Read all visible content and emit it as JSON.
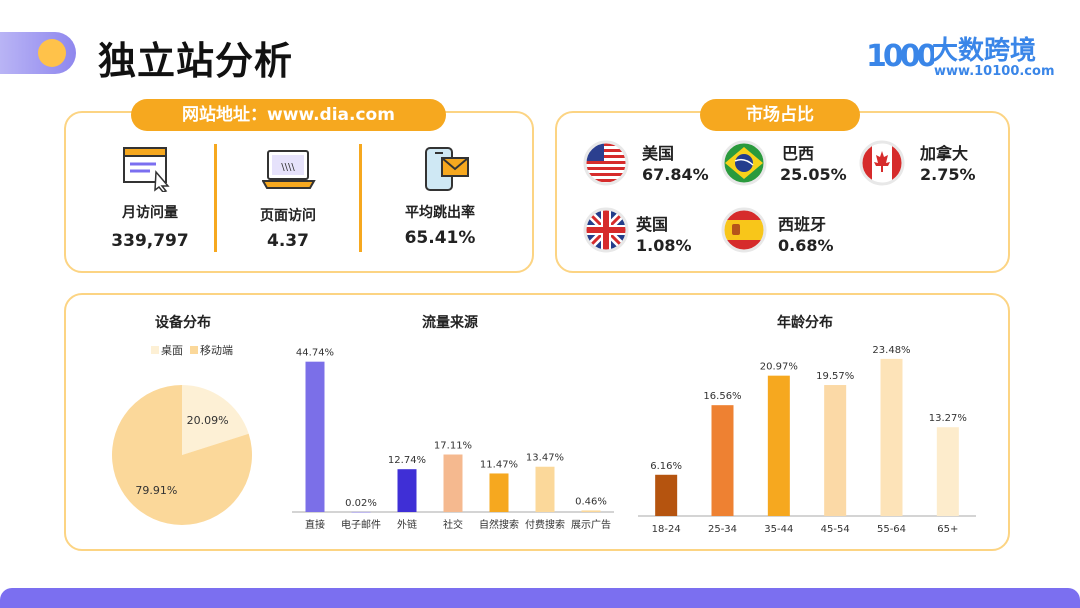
{
  "header": {
    "title": "独立站分析"
  },
  "logo": {
    "mark": "1000",
    "name": "大数跨境",
    "url": "www.10100.com"
  },
  "site": {
    "label": "网站地址：www.dia.com",
    "metrics": [
      {
        "label": "月访问量",
        "value": "339,797",
        "icon": "browser-window-cursor-icon"
      },
      {
        "label": "页面访问",
        "value": "4.37",
        "icon": "laptop-icon"
      },
      {
        "label": "平均跳出率",
        "value": "65.41%",
        "icon": "phone-mail-icon"
      }
    ]
  },
  "market": {
    "label": "市场占比",
    "items": [
      {
        "country": "美国",
        "value": "67.84%",
        "flag": "usa-flag-icon"
      },
      {
        "country": "巴西",
        "value": "25.05%",
        "flag": "brazil-flag-icon"
      },
      {
        "country": "加拿大",
        "value": "2.75%",
        "flag": "canada-flag-icon"
      },
      {
        "country": "英国",
        "value": "1.08%",
        "flag": "uk-flag-icon"
      },
      {
        "country": "西班牙",
        "value": "0.68%",
        "flag": "spain-flag-icon"
      }
    ]
  },
  "colors": {
    "accent": "#f6a81f",
    "panel_border": "#fcd483",
    "bottom_bar": "#7b6ff0"
  },
  "chart_data": [
    {
      "type": "pie",
      "title": "设备分布",
      "legend_position": "top",
      "labels": [
        "桌面",
        "移动端"
      ],
      "values": [
        20.09,
        79.91
      ],
      "value_labels": [
        "20.09%",
        "79.91%"
      ],
      "colors": [
        "#fdf0d5",
        "#fbd89a"
      ]
    },
    {
      "type": "bar",
      "title": "流量来源",
      "categories": [
        "直接",
        "电子邮件",
        "外链",
        "社交",
        "自然搜索",
        "付费搜索",
        "展示广告"
      ],
      "values": [
        44.74,
        0.02,
        12.74,
        17.11,
        11.47,
        13.47,
        0.46
      ],
      "value_labels": [
        "44.74%",
        "0.02%",
        "12.74%",
        "17.11%",
        "11.47%",
        "13.47%",
        "0.46%"
      ],
      "colors": [
        "#7b6fe8",
        "#7b6fe8",
        "#3f2fd6",
        "#f5b98f",
        "#f6a81f",
        "#fbd89a",
        "#fbd89a"
      ],
      "ylim": [
        0,
        50
      ]
    },
    {
      "type": "bar",
      "title": "年龄分布",
      "categories": [
        "18-24",
        "25-34",
        "35-44",
        "45-54",
        "55-64",
        "65+"
      ],
      "values": [
        6.16,
        16.56,
        20.97,
        19.57,
        23.48,
        13.27
      ],
      "value_labels": [
        "6.16%",
        "16.56%",
        "20.97%",
        "19.57%",
        "23.48%",
        "13.27%"
      ],
      "colors": [
        "#b5540f",
        "#ee8132",
        "#f6a81f",
        "#fbd9a6",
        "#fde3b8",
        "#fdeccc"
      ],
      "ylim": [
        0,
        26
      ]
    }
  ]
}
